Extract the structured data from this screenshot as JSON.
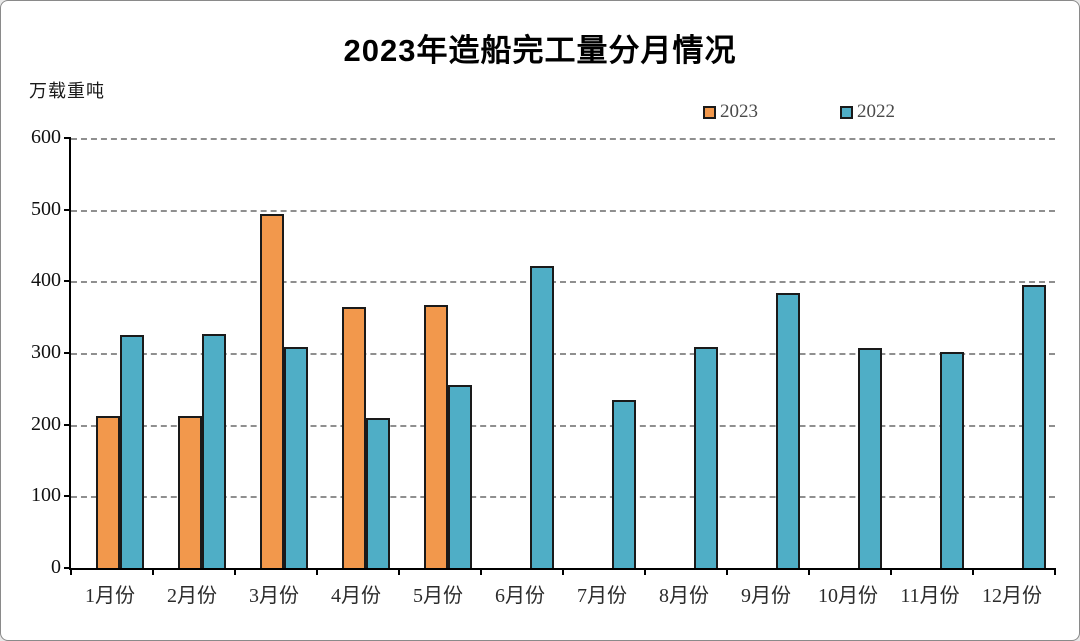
{
  "header": {
    "title": "2023年造船完工量分月情况",
    "unit_label": "万载重吨"
  },
  "legend": [
    {
      "label": "2023",
      "color": "#F2984C"
    },
    {
      "label": "2022",
      "color": "#4FAEC6"
    }
  ],
  "chart_data": {
    "type": "bar",
    "title": "2023年造船完工量分月情况",
    "xlabel": "",
    "ylabel": "万载重吨",
    "ylim": [
      0,
      600
    ],
    "yticks": [
      0,
      100,
      200,
      300,
      400,
      500,
      600
    ],
    "grid": "horizontal-dashed",
    "legend_position": "top-right",
    "categories": [
      "1月份",
      "2月份",
      "3月份",
      "4月份",
      "5月份",
      "6月份",
      "7月份",
      "8月份",
      "9月份",
      "10月份",
      "11月份",
      "12月份"
    ],
    "series": [
      {
        "name": "2023",
        "color": "#F2984C",
        "border_color": "#1A1A1A",
        "values": [
          212,
          212,
          494,
          364,
          367,
          null,
          null,
          null,
          null,
          null,
          null,
          null
        ]
      },
      {
        "name": "2022",
        "color": "#4FAEC6",
        "border_color": "#1A1A1A",
        "values": [
          325,
          327,
          308,
          210,
          256,
          421,
          235,
          308,
          384,
          307,
          302,
          395
        ]
      }
    ]
  }
}
